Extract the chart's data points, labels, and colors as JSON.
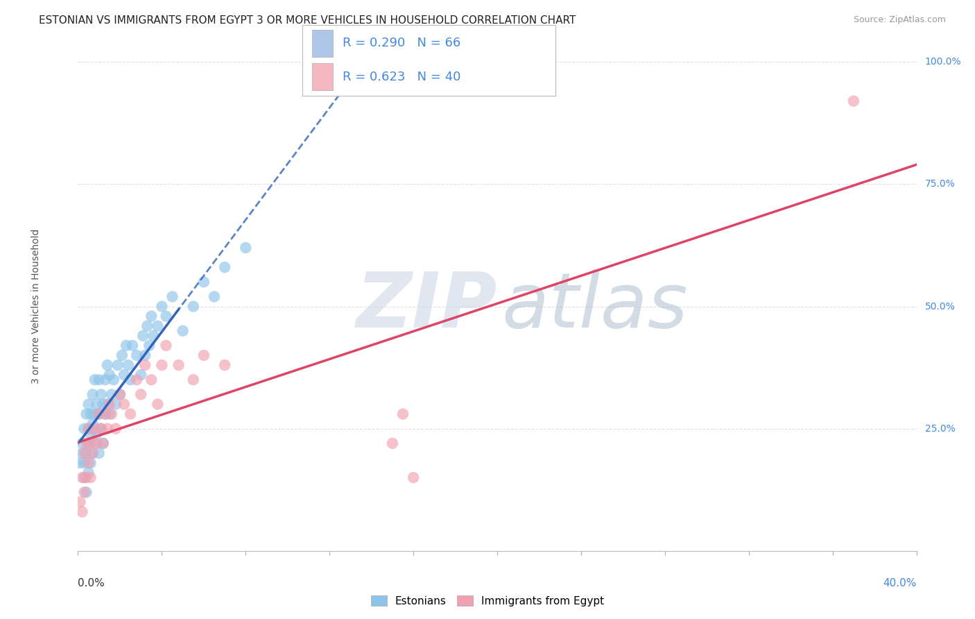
{
  "title": "ESTONIAN VS IMMIGRANTS FROM EGYPT 3 OR MORE VEHICLES IN HOUSEHOLD CORRELATION CHART",
  "source": "Source: ZipAtlas.com",
  "yaxis_label": "3 or more Vehicles in Household",
  "legend_bottom": [
    "Estonians",
    "Immigrants from Egypt"
  ],
  "r_estonian": 0.29,
  "n_estonian": 66,
  "r_egypt": 0.623,
  "n_egypt": 40,
  "xlim": [
    0.0,
    0.4
  ],
  "ylim": [
    0.0,
    1.0
  ],
  "background_color": "#ffffff",
  "grid_color": "#cccccc",
  "blue_scatter_color": "#8ec4e8",
  "pink_scatter_color": "#f0a0b0",
  "blue_line_color": "#3366bb",
  "pink_line_color": "#dd4466",
  "watermark_zip_color": "#ccd8e8",
  "watermark_atlas_color": "#a8b8cc",
  "title_fontsize": 11,
  "source_fontsize": 9,
  "legend_box_color": "#aec6e8",
  "legend_box_pink": "#f4b8c1",
  "tick_label_color_blue": "#4488dd",
  "estonian_x": [
    0.001,
    0.002,
    0.002,
    0.003,
    0.003,
    0.003,
    0.004,
    0.004,
    0.004,
    0.005,
    0.005,
    0.005,
    0.005,
    0.006,
    0.006,
    0.006,
    0.007,
    0.007,
    0.007,
    0.008,
    0.008,
    0.008,
    0.009,
    0.009,
    0.01,
    0.01,
    0.01,
    0.011,
    0.011,
    0.012,
    0.012,
    0.013,
    0.013,
    0.014,
    0.014,
    0.015,
    0.015,
    0.016,
    0.017,
    0.018,
    0.019,
    0.02,
    0.021,
    0.022,
    0.023,
    0.024,
    0.025,
    0.026,
    0.028,
    0.03,
    0.031,
    0.032,
    0.033,
    0.034,
    0.035,
    0.036,
    0.038,
    0.04,
    0.042,
    0.045,
    0.05,
    0.055,
    0.06,
    0.065,
    0.07,
    0.08
  ],
  "estonian_y": [
    0.18,
    0.2,
    0.22,
    0.15,
    0.18,
    0.25,
    0.12,
    0.2,
    0.28,
    0.16,
    0.22,
    0.25,
    0.3,
    0.18,
    0.24,
    0.28,
    0.2,
    0.26,
    0.32,
    0.22,
    0.28,
    0.35,
    0.24,
    0.3,
    0.2,
    0.28,
    0.35,
    0.25,
    0.32,
    0.22,
    0.3,
    0.28,
    0.35,
    0.3,
    0.38,
    0.28,
    0.36,
    0.32,
    0.35,
    0.3,
    0.38,
    0.32,
    0.4,
    0.36,
    0.42,
    0.38,
    0.35,
    0.42,
    0.4,
    0.36,
    0.44,
    0.4,
    0.46,
    0.42,
    0.48,
    0.44,
    0.46,
    0.5,
    0.48,
    0.52,
    0.45,
    0.5,
    0.55,
    0.52,
    0.58,
    0.62
  ],
  "egypt_x": [
    0.001,
    0.002,
    0.002,
    0.003,
    0.003,
    0.004,
    0.004,
    0.005,
    0.005,
    0.006,
    0.006,
    0.007,
    0.008,
    0.009,
    0.01,
    0.011,
    0.012,
    0.013,
    0.014,
    0.015,
    0.016,
    0.018,
    0.02,
    0.022,
    0.025,
    0.028,
    0.03,
    0.032,
    0.035,
    0.038,
    0.04,
    0.042,
    0.048,
    0.055,
    0.06,
    0.07,
    0.15,
    0.155,
    0.16,
    0.37
  ],
  "egypt_y": [
    0.1,
    0.08,
    0.15,
    0.12,
    0.2,
    0.15,
    0.22,
    0.18,
    0.25,
    0.15,
    0.22,
    0.2,
    0.25,
    0.22,
    0.28,
    0.25,
    0.22,
    0.28,
    0.25,
    0.3,
    0.28,
    0.25,
    0.32,
    0.3,
    0.28,
    0.35,
    0.32,
    0.38,
    0.35,
    0.3,
    0.38,
    0.42,
    0.38,
    0.35,
    0.4,
    0.38,
    0.22,
    0.28,
    0.15,
    0.92
  ]
}
